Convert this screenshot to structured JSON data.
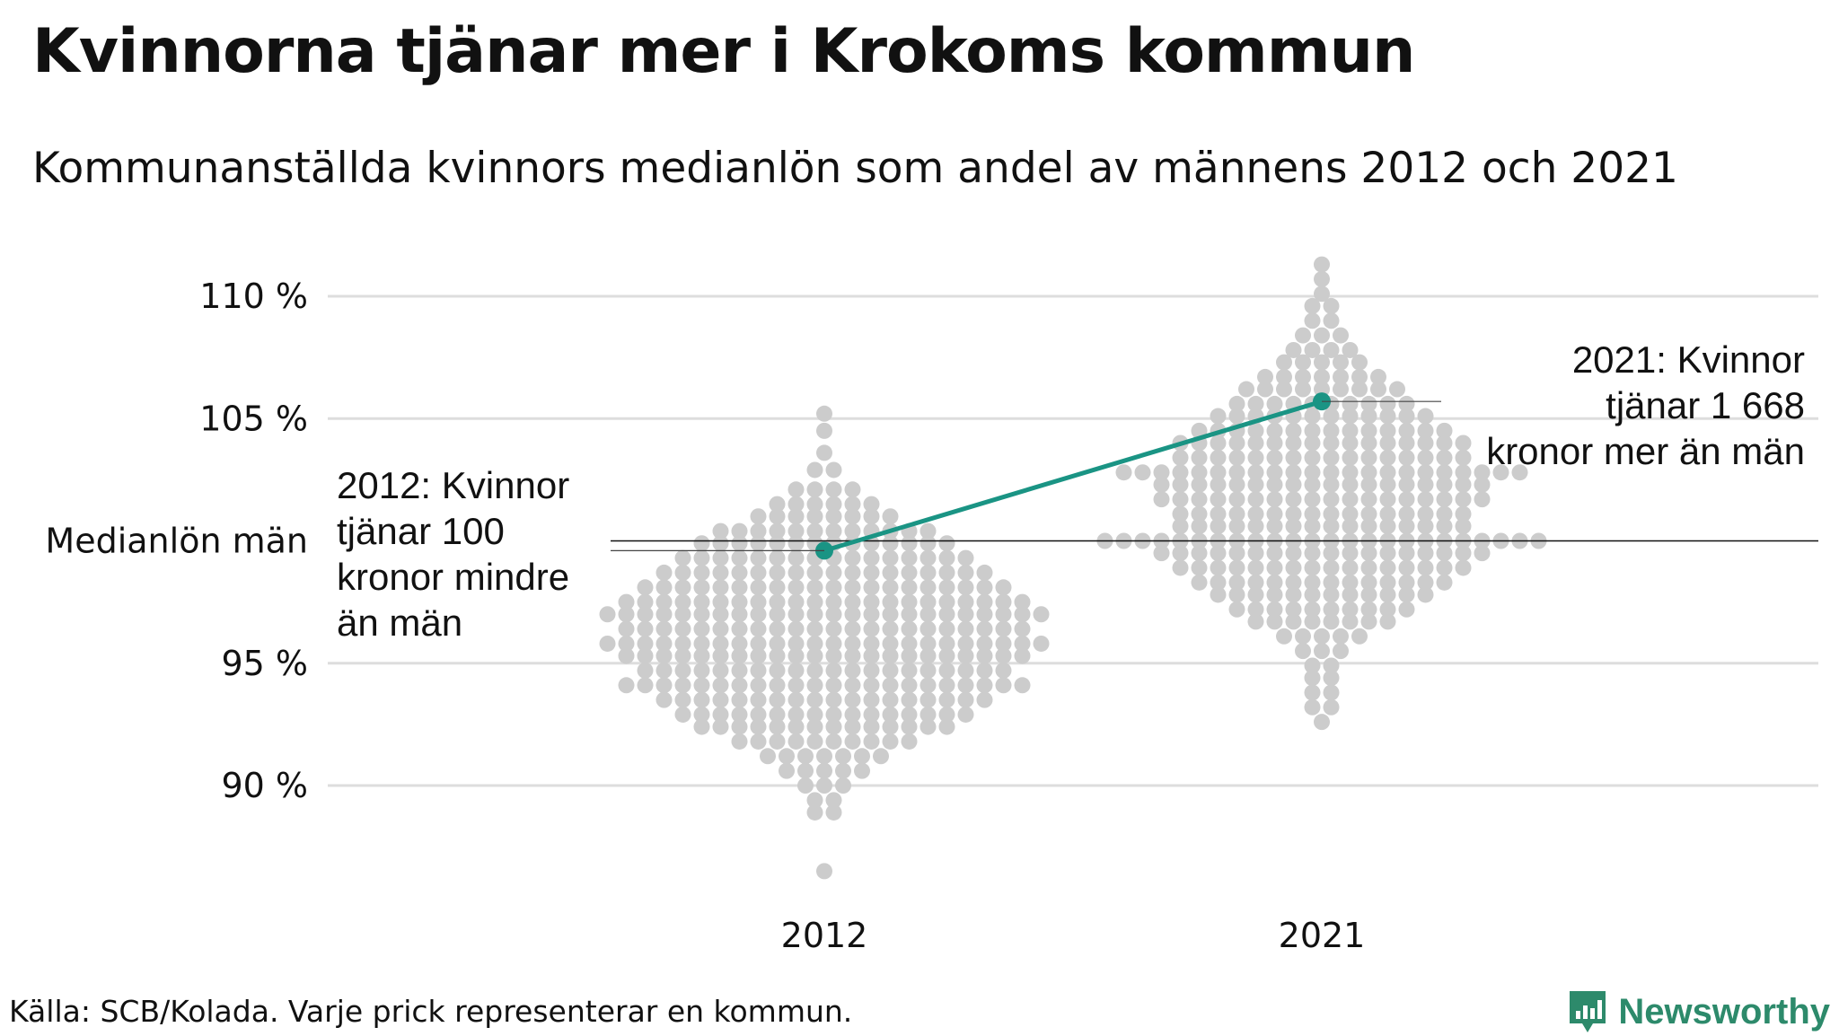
{
  "header": {
    "title": "Kvinnorna tjänar mer i Krokoms kommun",
    "subtitle": "Kommunanställda kvinnors medianlön som andel av männens 2012 och 2021"
  },
  "footer": {
    "source": "Källa: SCB/Kolada. Varje prick representerar en kommun.",
    "brand": "Newsworthy"
  },
  "colors": {
    "highlight": "#1a9484",
    "dots": "#cccccc",
    "gridline": "#dddddd",
    "brand": "#2d8a6b"
  },
  "chart_data": {
    "type": "scatter",
    "title": "Kvinnorna tjänar mer i Krokoms kommun",
    "subtitle": "Kommunanställda kvinnors medianlön som andel av männens 2012 och 2021",
    "categories": [
      "2012",
      "2021"
    ],
    "y_unit": "%",
    "ylim": [
      86,
      112
    ],
    "y_ticks": [
      {
        "value": 90,
        "label": "90 %"
      },
      {
        "value": 95,
        "label": "95 %"
      },
      {
        "value": 100,
        "label": "Medianlön män"
      },
      {
        "value": 105,
        "label": "105 %"
      },
      {
        "value": 110,
        "label": "110 %"
      }
    ],
    "grid": true,
    "reference_line": {
      "value": 100,
      "label": "Medianlön män"
    },
    "series": [
      {
        "name": "Kommuner",
        "distributions": [
          {
            "category": "2012",
            "bins": [
              {
                "y": 105.2,
                "count": 1
              },
              {
                "y": 104.5,
                "count": 1
              },
              {
                "y": 103.6,
                "count": 1
              },
              {
                "y": 102.9,
                "count": 2
              },
              {
                "y": 102.1,
                "count": 4
              },
              {
                "y": 101.5,
                "count": 6
              },
              {
                "y": 101.0,
                "count": 8
              },
              {
                "y": 100.4,
                "count": 12
              },
              {
                "y": 99.9,
                "count": 14
              },
              {
                "y": 99.3,
                "count": 16
              },
              {
                "y": 98.7,
                "count": 18
              },
              {
                "y": 98.1,
                "count": 20
              },
              {
                "y": 97.5,
                "count": 22
              },
              {
                "y": 97.0,
                "count": 24
              },
              {
                "y": 96.4,
                "count": 22
              },
              {
                "y": 95.8,
                "count": 24
              },
              {
                "y": 95.3,
                "count": 22
              },
              {
                "y": 94.7,
                "count": 20
              },
              {
                "y": 94.1,
                "count": 22
              },
              {
                "y": 93.5,
                "count": 18
              },
              {
                "y": 92.9,
                "count": 16
              },
              {
                "y": 92.4,
                "count": 14
              },
              {
                "y": 91.8,
                "count": 10
              },
              {
                "y": 91.2,
                "count": 7
              },
              {
                "y": 90.6,
                "count": 5
              },
              {
                "y": 90.0,
                "count": 3
              },
              {
                "y": 89.4,
                "count": 2
              },
              {
                "y": 88.9,
                "count": 2
              },
              {
                "y": 86.5,
                "count": 1
              }
            ]
          },
          {
            "category": "2021",
            "bins": [
              {
                "y": 111.3,
                "count": 1
              },
              {
                "y": 110.7,
                "count": 1
              },
              {
                "y": 110.1,
                "count": 1
              },
              {
                "y": 109.6,
                "count": 2
              },
              {
                "y": 109.0,
                "count": 2
              },
              {
                "y": 108.4,
                "count": 3
              },
              {
                "y": 107.8,
                "count": 4
              },
              {
                "y": 107.3,
                "count": 5
              },
              {
                "y": 106.7,
                "count": 7
              },
              {
                "y": 106.2,
                "count": 9
              },
              {
                "y": 105.6,
                "count": 10
              },
              {
                "y": 105.1,
                "count": 12
              },
              {
                "y": 104.5,
                "count": 14
              },
              {
                "y": 104.0,
                "count": 16
              },
              {
                "y": 103.4,
                "count": 16
              },
              {
                "y": 102.8,
                "count": 22
              },
              {
                "y": 102.3,
                "count": 18
              },
              {
                "y": 101.7,
                "count": 18
              },
              {
                "y": 101.1,
                "count": 16
              },
              {
                "y": 100.6,
                "count": 16
              },
              {
                "y": 100.0,
                "count": 24
              },
              {
                "y": 99.5,
                "count": 18
              },
              {
                "y": 98.9,
                "count": 16
              },
              {
                "y": 98.3,
                "count": 14
              },
              {
                "y": 97.8,
                "count": 12
              },
              {
                "y": 97.2,
                "count": 10
              },
              {
                "y": 96.7,
                "count": 8
              },
              {
                "y": 96.1,
                "count": 5
              },
              {
                "y": 95.5,
                "count": 3
              },
              {
                "y": 94.9,
                "count": 2
              },
              {
                "y": 94.4,
                "count": 2
              },
              {
                "y": 93.8,
                "count": 2
              },
              {
                "y": 93.2,
                "count": 2
              },
              {
                "y": 92.6,
                "count": 1
              }
            ]
          }
        ]
      },
      {
        "name": "Krokoms kommun",
        "values": [
          {
            "x": "2012",
            "y": 99.6,
            "label": "2012: Kvinnor tjänar 100 kronor mindre än män"
          },
          {
            "x": "2021",
            "y": 105.7,
            "label": "2021: Kvinnor tjänar 1 668 kronor mer än män"
          }
        ]
      }
    ],
    "legend": "none"
  }
}
